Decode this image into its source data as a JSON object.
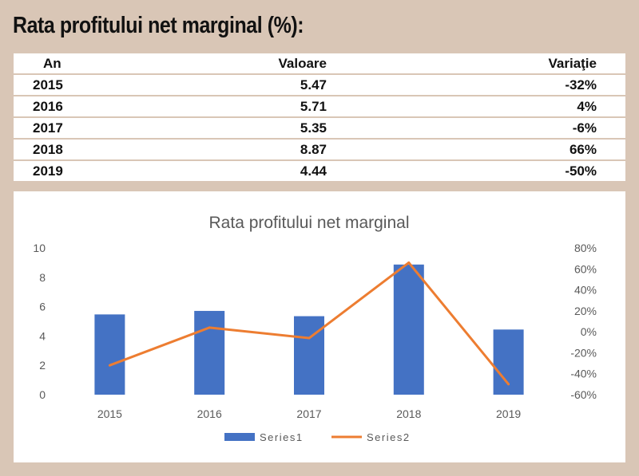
{
  "page_title": "Rata profitului net marginal (%):",
  "table": {
    "headers": [
      "An",
      "Valoare",
      "Variaţie"
    ],
    "rows": [
      [
        "2015",
        "5.47",
        "-32%"
      ],
      [
        "2016",
        "5.71",
        "4%"
      ],
      [
        "2017",
        "5.35",
        "-6%"
      ],
      [
        "2018",
        "8.87",
        "66%"
      ],
      [
        "2019",
        "4.44",
        "-50%"
      ]
    ]
  },
  "chart_data": {
    "type": "bar",
    "title": "Rata profitului net marginal",
    "categories": [
      "2015",
      "2016",
      "2017",
      "2018",
      "2019"
    ],
    "series": [
      {
        "name": "Series1",
        "type": "bar",
        "axis": "left",
        "values": [
          5.47,
          5.71,
          5.35,
          8.87,
          4.44
        ],
        "color": "#4472c4"
      },
      {
        "name": "Series2",
        "type": "line",
        "axis": "right",
        "values": [
          -32,
          4,
          -6,
          66,
          -50
        ],
        "color": "#ed7d31"
      }
    ],
    "y_left": {
      "min": 0,
      "max": 10,
      "ticks": [
        "0",
        "2",
        "4",
        "6",
        "8",
        "10"
      ]
    },
    "y_right": {
      "min": -60,
      "max": 80,
      "ticks": [
        "-60%",
        "-40%",
        "-20%",
        "0%",
        "20%",
        "40%",
        "60%",
        "80%"
      ]
    },
    "grid": false,
    "legend": "bottom"
  }
}
